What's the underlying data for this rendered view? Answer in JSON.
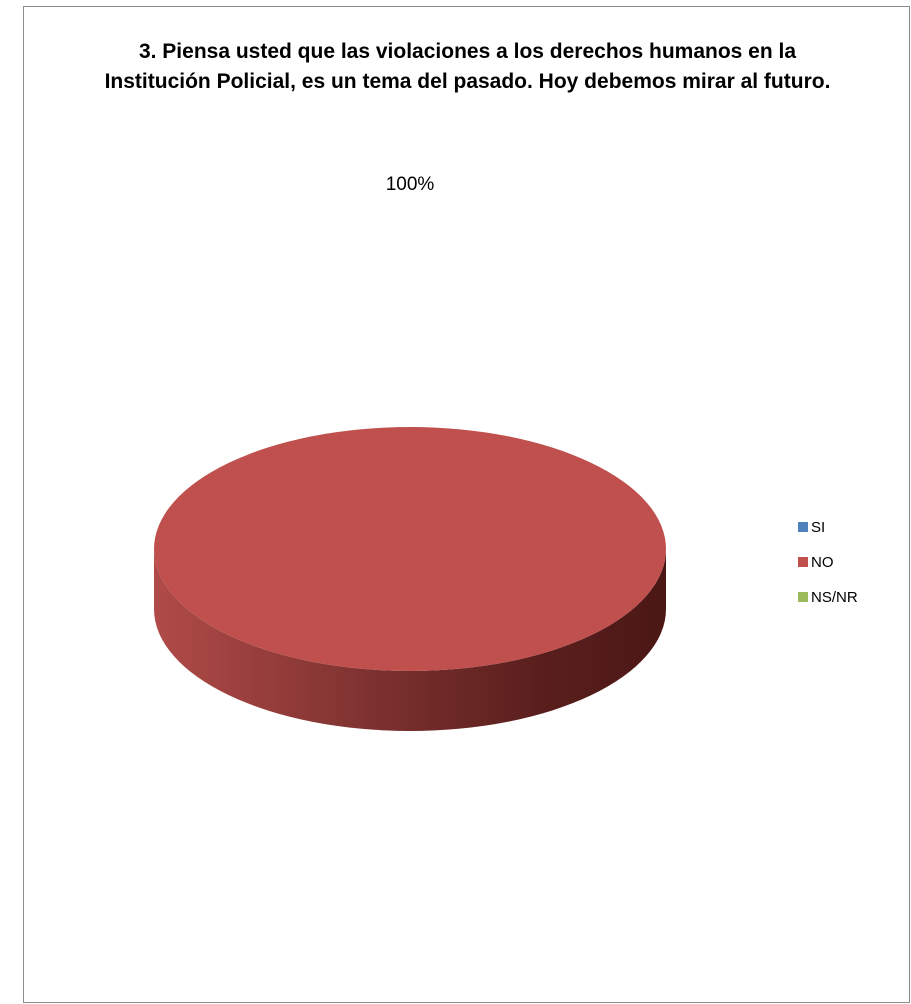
{
  "chart_data": {
    "type": "pie",
    "title": "3. Piensa usted que las violaciones a los derechos humanos en la Institución Policial, es un tema del pasado. Hoy debemos mirar al futuro.",
    "categories": [
      "SI",
      "NO",
      "NS/NR"
    ],
    "values": [
      0,
      100,
      0
    ],
    "data_labels": [
      "",
      "100%",
      ""
    ],
    "colors": [
      "#4f81bd",
      "#c0504d",
      "#9bbb59"
    ],
    "style": "3d",
    "legend_position": "right"
  }
}
